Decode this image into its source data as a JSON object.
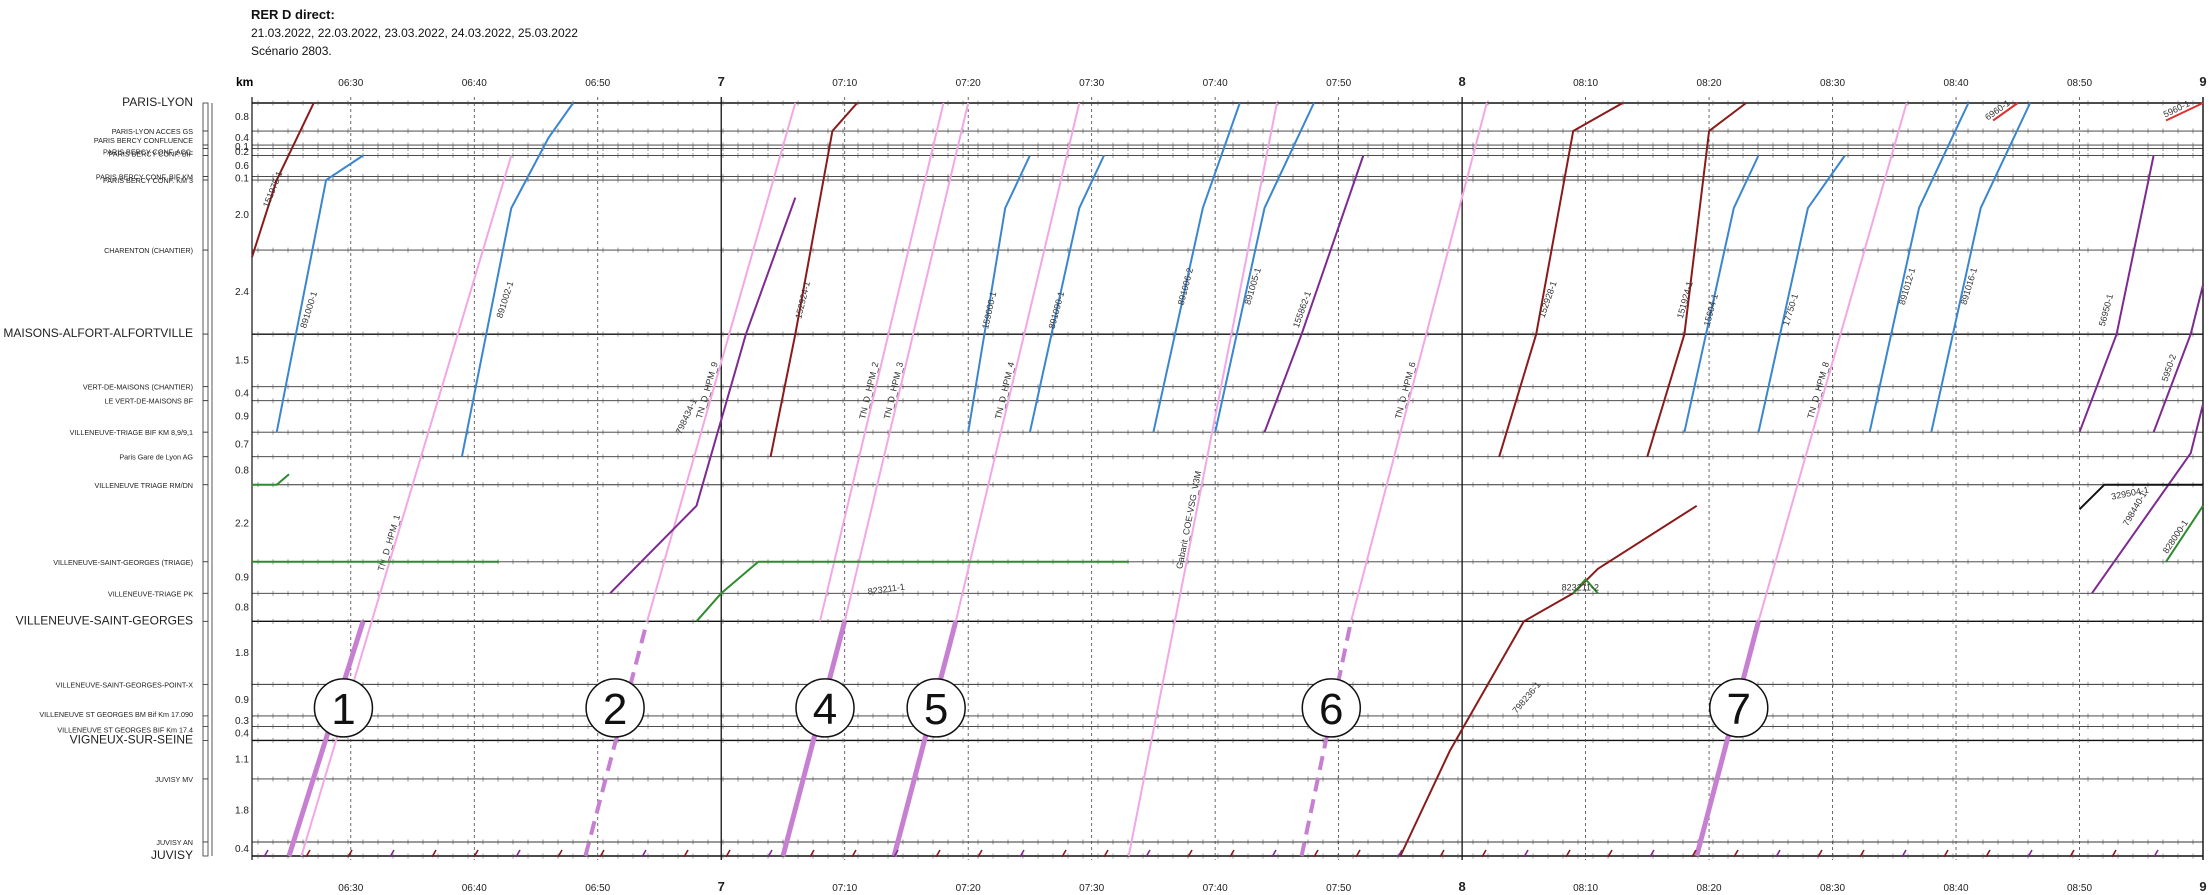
{
  "header": {
    "title": "RER D direct:",
    "dates": "21.03.2022, 22.03.2022, 23.03.2022, 24.03.2022, 25.03.2022",
    "scenario": "Scénario 2803."
  },
  "chart_data": {
    "type": "line",
    "title": "RER D direct:",
    "xlabel": "",
    "ylabel": "km",
    "x_unit": "time",
    "x_range": [
      "06:22",
      "09:00"
    ],
    "x_ticks": [
      {
        "t": "06:30",
        "label": "06:30",
        "major": false
      },
      {
        "t": "06:40",
        "label": "06:40",
        "major": false
      },
      {
        "t": "06:50",
        "label": "06:50",
        "major": false
      },
      {
        "t": "07:00",
        "label": "7",
        "major": true
      },
      {
        "t": "07:10",
        "label": "07:10",
        "major": false
      },
      {
        "t": "07:20",
        "label": "07:20",
        "major": false
      },
      {
        "t": "07:30",
        "label": "07:30",
        "major": false
      },
      {
        "t": "07:40",
        "label": "07:40",
        "major": false
      },
      {
        "t": "07:50",
        "label": "07:50",
        "major": false
      },
      {
        "t": "08:00",
        "label": "8",
        "major": true
      },
      {
        "t": "08:10",
        "label": "08:10",
        "major": false
      },
      {
        "t": "08:20",
        "label": "08:20",
        "major": false
      },
      {
        "t": "08:30",
        "label": "08:30",
        "major": false
      },
      {
        "t": "08:40",
        "label": "08:40",
        "major": false
      },
      {
        "t": "08:50",
        "label": "08:50",
        "major": false
      },
      {
        "t": "09:00",
        "label": "9",
        "major": true
      }
    ],
    "stations": [
      {
        "name": "PARIS-LYON",
        "km": 0.0,
        "major": true,
        "seg": ""
      },
      {
        "name": "PARIS-LYON ACCES GS",
        "km": 0.8,
        "major": false,
        "seg": "0.8"
      },
      {
        "name": "PARIS BERCY CONFLUENCE",
        "km": 1.2,
        "major": false,
        "seg": "0.4"
      },
      {
        "name": "PARIS BERCY CONF. BIF",
        "km": 1.3,
        "major": false,
        "seg": "0.1"
      },
      {
        "name": "PARIS BERCY CONF. ACC.",
        "km": 1.5,
        "major": false,
        "seg": "0.2"
      },
      {
        "name": "PARIS BERCY CONF. BIF KM",
        "km": 2.1,
        "major": false,
        "seg": "0.6"
      },
      {
        "name": "PARIS BERCY CONF. KM 3",
        "km": 2.2,
        "major": false,
        "seg": "0.1"
      },
      {
        "name": "CHARENTON (CHANTIER)",
        "km": 4.2,
        "major": false,
        "seg": "2.0"
      },
      {
        "name": "MAISONS-ALFORT-ALFORTVILLE",
        "km": 6.6,
        "major": true,
        "seg": "2.4"
      },
      {
        "name": "VERT-DE-MAISONS (CHANTIER)",
        "km": 8.1,
        "major": false,
        "seg": "1.5"
      },
      {
        "name": "LE VERT-DE-MAISONS BF",
        "km": 8.5,
        "major": false,
        "seg": "0.4"
      },
      {
        "name": "VILLENEUVE-TRIAGE BIF KM 8,9/9,1",
        "km": 9.4,
        "major": false,
        "seg": "0.9"
      },
      {
        "name": "Paris Gare de Lyon AG",
        "km": 10.1,
        "major": false,
        "seg": "0.7"
      },
      {
        "name": "VILLENEUVE TRIAGE RM/DN",
        "km": 10.9,
        "major": false,
        "seg": "0.8"
      },
      {
        "name": "VILLENEUVE-SAINT-GEORGES (TRIAGE)",
        "km": 13.1,
        "major": false,
        "seg": "2.2"
      },
      {
        "name": "VILLENEUVE-TRIAGE PK",
        "km": 14.0,
        "major": false,
        "seg": "0.9"
      },
      {
        "name": "VILLENEUVE-SAINT-GEORGES",
        "km": 14.8,
        "major": true,
        "seg": "0.8"
      },
      {
        "name": "VILLENEUVE-SAINT-GEORGES-POINT-X",
        "km": 16.6,
        "major": false,
        "seg": "1.8"
      },
      {
        "name": "VILLENEUVE ST GEORGES BM Bif Km 17.090",
        "km": 17.5,
        "major": false,
        "seg": "0.9"
      },
      {
        "name": "VILLENEUVE ST GEORGES BIF Km 17.4",
        "km": 17.8,
        "major": false,
        "seg": "0.3"
      },
      {
        "name": "VIGNEUX-SUR-SEINE",
        "km": 18.2,
        "major": true,
        "seg": "0.4"
      },
      {
        "name": "JUVISY MV",
        "km": 19.3,
        "major": false,
        "seg": "1.1"
      },
      {
        "name": "JUVISY AN",
        "km": 21.1,
        "major": false,
        "seg": "1.8"
      },
      {
        "name": "JUVISY",
        "km": 21.5,
        "major": true,
        "seg": "0.4"
      }
    ],
    "annotations": [
      {
        "label": "1",
        "t": "06:29",
        "km": 17.5
      },
      {
        "label": "2",
        "t": "06:51",
        "km": 17.5
      },
      {
        "label": "4",
        "t": "07:08",
        "km": 17.5
      },
      {
        "label": "5",
        "t": "07:17",
        "km": 17.5
      },
      {
        "label": "6",
        "t": "07:49",
        "km": 17.5
      },
      {
        "label": "7",
        "t": "08:22",
        "km": 17.5
      }
    ],
    "series": [
      {
        "name": "151975-1",
        "color": "#8b1a1a",
        "width": 2,
        "points": [
          [
            "06:22",
            4.4
          ],
          [
            "06:24",
            2.2
          ],
          [
            "06:27",
            0.0
          ]
        ]
      },
      {
        "name": "891000-1",
        "color": "#3a86d0",
        "width": 2,
        "points": [
          [
            "06:24",
            9.4
          ],
          [
            "06:28",
            2.2
          ],
          [
            "06:31",
            1.5
          ]
        ]
      },
      {
        "name": "TN_D_HPM_1",
        "color": "#f2a7e6",
        "width": 2,
        "points": [
          [
            "06:26",
            21.5
          ],
          [
            "06:43",
            1.5
          ]
        ]
      },
      {
        "name": "",
        "color": "#c77fd2",
        "width": 5,
        "points": [
          [
            "06:25",
            21.5
          ],
          [
            "06:31",
            14.8
          ]
        ]
      },
      {
        "name": "891002-1",
        "color": "#3a86d0",
        "width": 2,
        "points": [
          [
            "06:39",
            10.1
          ],
          [
            "06:43",
            3.0
          ],
          [
            "06:46",
            1.0
          ],
          [
            "06:48",
            0.0
          ]
        ]
      },
      {
        "name": "TN_D_HPM_9",
        "color": "#f2a7e6",
        "width": 2,
        "points": [
          [
            "06:54",
            14.8
          ],
          [
            "07:06",
            0.0
          ]
        ]
      },
      {
        "name": "",
        "color": "#c77fd2",
        "width": 4,
        "dash": true,
        "points": [
          [
            "06:49",
            21.5
          ],
          [
            "06:54",
            14.8
          ]
        ]
      },
      {
        "name": "798434-1",
        "color": "#7e2a90",
        "width": 2,
        "points": [
          [
            "06:51",
            14.0
          ],
          [
            "06:58",
            11.5
          ],
          [
            "07:02",
            6.6
          ],
          [
            "07:06",
            2.7
          ]
        ]
      },
      {
        "name": "152924-1",
        "color": "#8b1a1a",
        "width": 2,
        "points": [
          [
            "07:04",
            10.1
          ],
          [
            "07:06",
            6.6
          ],
          [
            "07:09",
            0.8
          ],
          [
            "07:11",
            0.0
          ]
        ]
      },
      {
        "name": "TN_D_HPM_2",
        "color": "#f2a7e6",
        "width": 2,
        "points": [
          [
            "07:08",
            14.8
          ],
          [
            "07:18",
            0.0
          ]
        ]
      },
      {
        "name": "",
        "color": "#c77fd2",
        "width": 5,
        "points": [
          [
            "07:05",
            21.5
          ],
          [
            "07:10",
            14.8
          ]
        ]
      },
      {
        "name": "TN_D_HPM_3",
        "color": "#f2a7e6",
        "width": 2,
        "points": [
          [
            "07:10",
            14.8
          ],
          [
            "07:20",
            0.0
          ]
        ]
      },
      {
        "name": "",
        "color": "#c77fd2",
        "width": 5,
        "points": [
          [
            "07:14",
            21.5
          ],
          [
            "07:19",
            14.8
          ]
        ]
      },
      {
        "name": "TN_D_HPM_4",
        "color": "#f2a7e6",
        "width": 2,
        "points": [
          [
            "07:19",
            14.8
          ],
          [
            "07:29",
            0.0
          ]
        ]
      },
      {
        "name": "159000-1",
        "color": "#3a86d0",
        "width": 2,
        "points": [
          [
            "07:20",
            9.4
          ],
          [
            "07:23",
            3.0
          ],
          [
            "07:25",
            1.5
          ]
        ]
      },
      {
        "name": "891090-1",
        "color": "#3a86d0",
        "width": 2,
        "points": [
          [
            "07:25",
            9.4
          ],
          [
            "07:29",
            3.0
          ],
          [
            "07:31",
            1.5
          ]
        ]
      },
      {
        "name": "Gabarit_COE-VSG_V3M",
        "color": "#f2a7e6",
        "width": 2,
        "points": [
          [
            "07:33",
            21.5
          ],
          [
            "07:45",
            0.0
          ]
        ]
      },
      {
        "name": "891006-2",
        "color": "#3a86d0",
        "width": 2,
        "points": [
          [
            "07:35",
            9.4
          ],
          [
            "07:39",
            3.0
          ],
          [
            "07:42",
            0.0
          ]
        ]
      },
      {
        "name": "891005-1",
        "color": "#3a86d0",
        "width": 2,
        "points": [
          [
            "07:40",
            9.4
          ],
          [
            "07:44",
            3.0
          ],
          [
            "07:48",
            0.0
          ]
        ]
      },
      {
        "name": "155862-1",
        "color": "#7e2a90",
        "width": 2,
        "points": [
          [
            "07:44",
            9.4
          ],
          [
            "07:47",
            6.6
          ],
          [
            "07:52",
            1.5
          ]
        ]
      },
      {
        "name": "TN_D_HPM_6",
        "color": "#f2a7e6",
        "width": 2,
        "points": [
          [
            "07:51",
            14.8
          ],
          [
            "08:02",
            0.0
          ]
        ]
      },
      {
        "name": "",
        "color": "#c77fd2",
        "width": 4,
        "dash": true,
        "points": [
          [
            "07:47",
            21.5
          ],
          [
            "07:51",
            14.8
          ]
        ]
      },
      {
        "name": "798236-1",
        "color": "#8b1a1a",
        "width": 2,
        "points": [
          [
            "07:55",
            21.5
          ],
          [
            "07:59",
            18.5
          ],
          [
            "08:05",
            14.8
          ],
          [
            "08:09",
            14.0
          ],
          [
            "08:11",
            13.3
          ],
          [
            "08:19",
            11.5
          ]
        ]
      },
      {
        "name": "152928-1",
        "color": "#8b1a1a",
        "width": 2,
        "points": [
          [
            "08:03",
            10.1
          ],
          [
            "08:06",
            6.6
          ],
          [
            "08:09",
            0.8
          ],
          [
            "08:13",
            0.0
          ]
        ]
      },
      {
        "name": "151924-1",
        "color": "#8b1a1a",
        "width": 2,
        "points": [
          [
            "08:15",
            10.1
          ],
          [
            "08:18",
            6.6
          ],
          [
            "08:20",
            0.8
          ],
          [
            "08:23",
            0.0
          ]
        ]
      },
      {
        "name": "15904-1",
        "color": "#3a86d0",
        "width": 2,
        "points": [
          [
            "08:18",
            9.4
          ],
          [
            "08:22",
            3.0
          ],
          [
            "08:24",
            1.5
          ]
        ]
      },
      {
        "name": "TN_D_HPM_8",
        "color": "#f2a7e6",
        "width": 2,
        "points": [
          [
            "08:24",
            14.8
          ],
          [
            "08:36",
            0.0
          ]
        ]
      },
      {
        "name": "",
        "color": "#c77fd2",
        "width": 5,
        "points": [
          [
            "08:19",
            21.5
          ],
          [
            "08:24",
            14.8
          ]
        ]
      },
      {
        "name": "17750-1",
        "color": "#3a86d0",
        "width": 2,
        "points": [
          [
            "08:24",
            9.4
          ],
          [
            "08:28",
            3.0
          ],
          [
            "08:31",
            1.5
          ]
        ]
      },
      {
        "name": "891012-1",
        "color": "#3a86d0",
        "width": 2,
        "points": [
          [
            "08:33",
            9.4
          ],
          [
            "08:37",
            3.0
          ],
          [
            "08:41",
            0.0
          ]
        ]
      },
      {
        "name": "891016-1",
        "color": "#3a86d0",
        "width": 2,
        "points": [
          [
            "08:38",
            9.4
          ],
          [
            "08:42",
            3.0
          ],
          [
            "08:46",
            0.0
          ]
        ]
      },
      {
        "name": "56950-1",
        "color": "#7e2a90",
        "width": 2,
        "points": [
          [
            "08:50",
            9.4
          ],
          [
            "08:53",
            6.6
          ],
          [
            "08:56",
            1.5
          ]
        ]
      },
      {
        "name": "5950-2",
        "color": "#7e2a90",
        "width": 2,
        "points": [
          [
            "08:56",
            9.4
          ],
          [
            "08:59",
            6.6
          ],
          [
            "09:00",
            5.2
          ]
        ]
      },
      {
        "name": "798440-1",
        "color": "#7e2a90",
        "width": 2,
        "points": [
          [
            "08:51",
            14.0
          ],
          [
            "08:56",
            11.5
          ],
          [
            "08:59",
            10.0
          ],
          [
            "09:00",
            8.6
          ]
        ]
      },
      {
        "name": "6960-1",
        "color": "#e03030",
        "width": 2,
        "points": [
          [
            "08:43",
            0.5
          ],
          [
            "08:45",
            0.0
          ]
        ]
      },
      {
        "name": "5960-1",
        "color": "#e03030",
        "width": 2,
        "points": [
          [
            "08:57",
            0.5
          ],
          [
            "09:00",
            0.0
          ]
        ]
      },
      {
        "name": "329504-1",
        "color": "#111111",
        "width": 2,
        "points": [
          [
            "08:50",
            11.6
          ],
          [
            "08:52",
            10.9
          ],
          [
            "09:00",
            10.9
          ]
        ]
      },
      {
        "name": "",
        "color": "#2e8b2e",
        "width": 2,
        "points": [
          [
            "06:22",
            13.1
          ],
          [
            "06:42",
            13.1
          ]
        ]
      },
      {
        "name": "",
        "color": "#2e8b2e",
        "width": 2,
        "points": [
          [
            "06:22",
            10.9
          ],
          [
            "06:24",
            10.9
          ],
          [
            "06:25",
            10.6
          ]
        ]
      },
      {
        "name": "823211-1",
        "color": "#2e8b2e",
        "width": 2,
        "points": [
          [
            "06:58",
            14.8
          ],
          [
            "07:00",
            14.0
          ],
          [
            "07:03",
            13.1
          ],
          [
            "07:33",
            13.1
          ]
        ]
      },
      {
        "name": "823211-2",
        "color": "#2e8b2e",
        "width": 2,
        "points": [
          [
            "08:09",
            14.0
          ],
          [
            "08:10",
            13.6
          ],
          [
            "08:11",
            14.0
          ]
        ]
      },
      {
        "name": "828000-1",
        "color": "#2e8b2e",
        "width": 2,
        "points": [
          [
            "08:57",
            13.1
          ],
          [
            "09:00",
            11.5
          ]
        ]
      }
    ]
  }
}
